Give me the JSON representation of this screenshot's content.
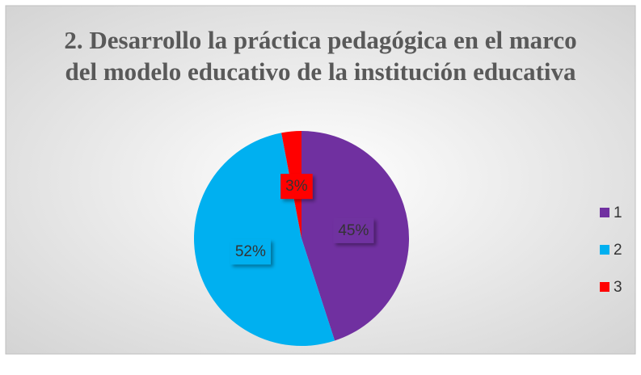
{
  "chart_data": {
    "type": "pie",
    "title": "2. Desarrollo la práctica pedagógica en el marco del modelo educativo de la institución educativa",
    "categories": [
      "1",
      "2",
      "3"
    ],
    "values": [
      45,
      52,
      3
    ],
    "value_labels": [
      "45%",
      "52%",
      "3%"
    ],
    "colors": [
      "#7030a0",
      "#00b0f0",
      "#ff0000"
    ],
    "legend": "right"
  }
}
